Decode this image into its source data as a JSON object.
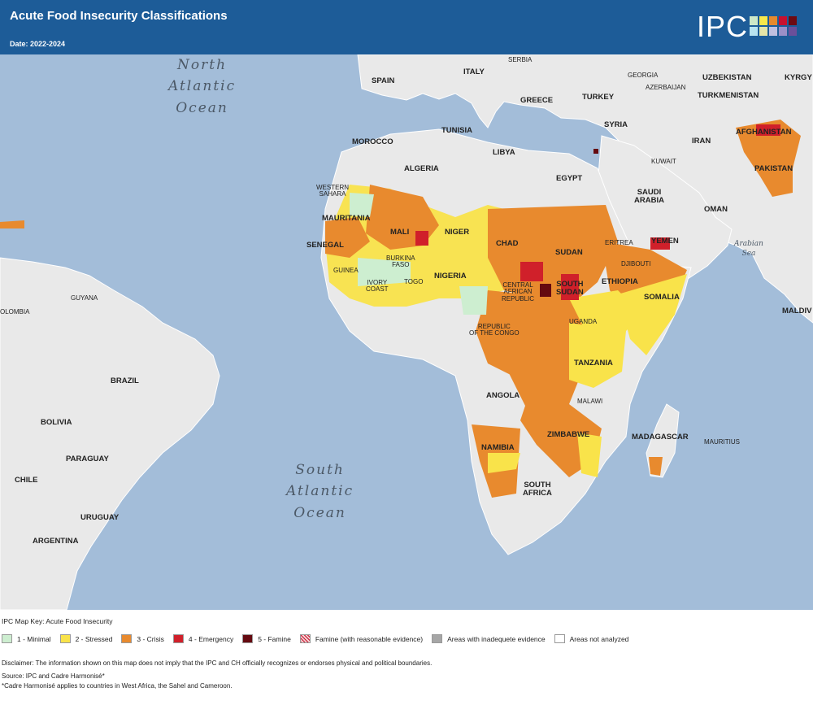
{
  "header": {
    "title": "Acute Food Insecurity Classifications",
    "date": "Date: 2022-2024",
    "logo_text": "IPC",
    "logo_colors": [
      "#cde8c8",
      "#f8e84a",
      "#e6892c",
      "#c8102e",
      "#6d0a12",
      "#b8e3f0",
      "#e5e5a8",
      "#bfbfe0",
      "#9a8fc7",
      "#6a4f9a"
    ]
  },
  "map": {
    "oceans": {
      "north_atlantic": [
        "North",
        "Atlantic",
        "Ocean"
      ],
      "south_atlantic": [
        "South",
        "Atlantic",
        "Ocean"
      ],
      "arabian_sea": [
        "Arabian",
        "Sea"
      ]
    },
    "countries": {
      "serbia": "SERBIA",
      "spain": "SPAIN",
      "italy": "ITALY",
      "georgia": "GEORGIA",
      "azerbaijan": "AZERBAIJAN",
      "uzbekistan": "UZBEKISTAN",
      "kyrgyz": "KYRGY",
      "greece": "GREECE",
      "turkey": "TURKEY",
      "turkmenistan": "TURKMENISTAN",
      "tunisia": "TUNISIA",
      "syria": "SYRIA",
      "afghanistan": "AFGHANISTAN",
      "morocco": "MOROCCO",
      "iran": "IRAN",
      "algeria": "ALGERIA",
      "libya": "LIBYA",
      "egypt": "EGYPT",
      "kuwait": "KUWAIT",
      "pakistan": "PAKISTAN",
      "western_sahara": "WESTERN\nSAHARA",
      "saudi_arabia": "SAUDI\nARABIA",
      "oman": "OMAN",
      "mauritania": "MAURITANIA",
      "mali": "MALI",
      "niger": "NIGER",
      "senegal": "SENEGAL",
      "chad": "CHAD",
      "sudan": "SUDAN",
      "eritrea": "ERITREA",
      "yemen": "YEMEN",
      "burkina_faso": "BURKINA\nFASO",
      "guinea": "GUINEA",
      "djibouti": "DJIBOUTI",
      "nigeria": "NIGERIA",
      "ivory_coast": "IVORY\nCOAST",
      "togo": "TOGO",
      "central_african_republic": "CENTRAL\nAFRICAN\nREPUBLIC",
      "south_sudan": "SOUTH\nSUDAN",
      "ethiopia": "ETHIOPIA",
      "somalia": "SOMALIA",
      "guyana": "GUYANA",
      "maldives": "MALDIV",
      "republic_of_congo": "REPUBLIC\nOF THE CONGO",
      "uganda": "UGANDA",
      "colombia": "OLOMBIA",
      "brazil": "BRAZIL",
      "tanzania": "TANZANIA",
      "angola": "ANGOLA",
      "malawi": "MALAWI",
      "bolivia": "BOLIVIA",
      "madagascar": "MADAGASCAR",
      "mauritius": "MAURITIUS",
      "zimbabwe": "ZIMBABWE",
      "namibia": "NAMIBIA",
      "paraguay": "PARAGUAY",
      "chile": "CHILE",
      "south_africa": "SOUTH\nAFRICA",
      "uruguay": "URUGUAY",
      "argentina": "ARGENTINA"
    }
  },
  "legend": {
    "title": "IPC Map Key: Acute Food Insecurity",
    "items": [
      {
        "label": "1 - Minimal",
        "color": "#cdeed0"
      },
      {
        "label": "2 - Stressed",
        "color": "#f9e34a"
      },
      {
        "label": "3 - Crisis",
        "color": "#e88a2e"
      },
      {
        "label": "4 - Emergency",
        "color": "#d0202a"
      },
      {
        "label": "5 - Famine",
        "color": "#650a10"
      },
      {
        "label": "Famine (with reasonable evidence)",
        "color": "#d9a0a0"
      },
      {
        "label": "Areas with inadequete evidence",
        "color": "#a6a6a6"
      },
      {
        "label": "Areas not analyzed",
        "color": "#ffffff"
      }
    ]
  },
  "notes": {
    "disclaimer": "Disclaimer: The information shown on this map does not imply that the IPC and CH officially recognizes or endorses physical and political boundaries.",
    "source": "Source: IPC and Cadre Harmonisé*",
    "footnote": "*Cadre Harmonisé applies to countries in West Africa, the Sahel and Cameroon."
  }
}
